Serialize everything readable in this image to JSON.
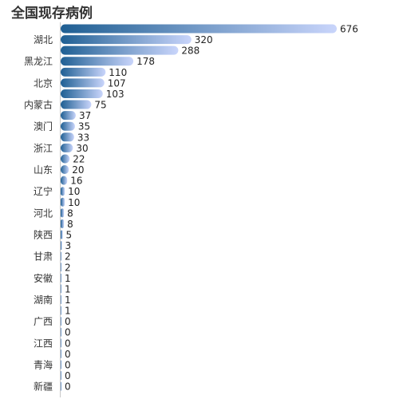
{
  "chart_data": {
    "type": "bar",
    "orientation": "horizontal",
    "title": "全国现存病例",
    "categories": [
      "",
      "湖北",
      "",
      "黑龙江",
      "",
      "北京",
      "",
      "内蒙古",
      "",
      "澳门",
      "",
      "浙江",
      "",
      "山东",
      "",
      "辽宁",
      "",
      "河北",
      "",
      "陕西",
      "",
      "甘肃",
      "",
      "安徽",
      "",
      "湖南",
      "",
      "广西",
      "",
      "江西",
      "",
      "青海",
      "",
      "新疆"
    ],
    "values": [
      676,
      320,
      288,
      178,
      110,
      107,
      103,
      75,
      37,
      35,
      33,
      30,
      22,
      20,
      16,
      10,
      10,
      8,
      8,
      5,
      3,
      2,
      2,
      1,
      1,
      1,
      1,
      0,
      0,
      0,
      0,
      0,
      0,
      0
    ],
    "xlim": [
      0,
      676
    ],
    "grid": false,
    "legend": "none",
    "colors": {
      "bar_start": "#1f5f93",
      "bar_end": "#c9d5fb"
    }
  }
}
